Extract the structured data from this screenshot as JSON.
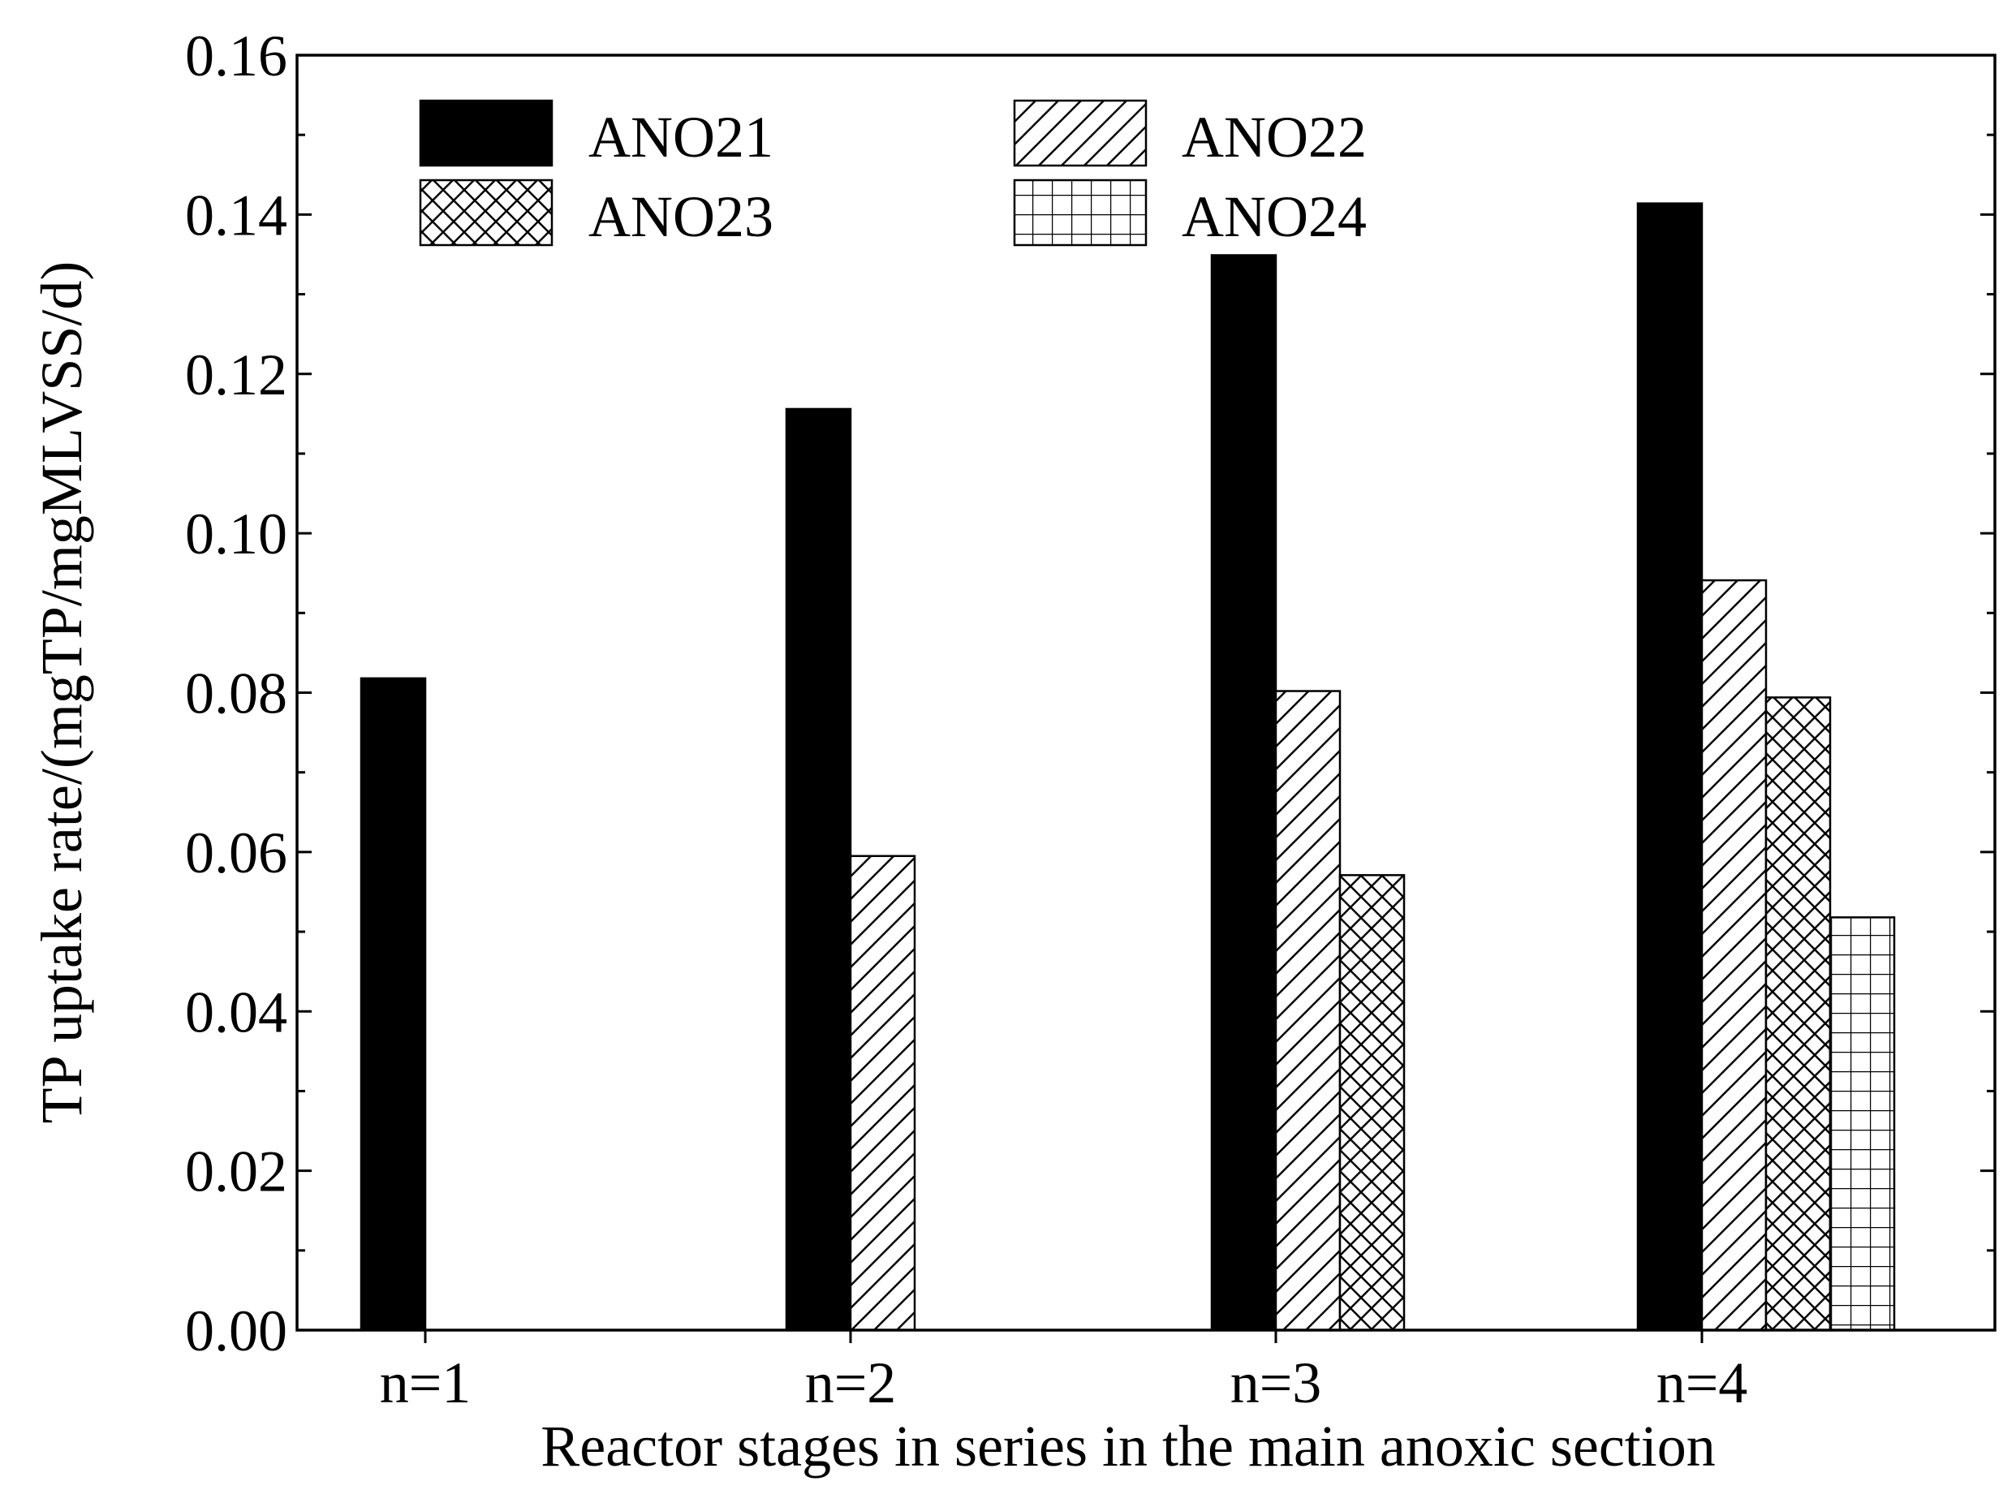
{
  "chart_data": {
    "type": "bar",
    "title": "",
    "xlabel": "Reactor stages in series in the main anoxic section",
    "ylabel": "TP uptake rate/(mgTP/mgMLVSS/d)",
    "ylim": [
      0,
      0.16
    ],
    "yticks": [
      "0.00",
      "0.02",
      "0.04",
      "0.06",
      "0.08",
      "0.10",
      "0.12",
      "0.14",
      "0.16"
    ],
    "categories": [
      "n=1",
      "n=2",
      "n=3",
      "n=4"
    ],
    "legend_position": "top-left",
    "grid": false,
    "series": [
      {
        "name": "ANO21",
        "pattern": "solid",
        "values": [
          0.0818,
          0.1156,
          0.1349,
          0.1414
        ]
      },
      {
        "name": "ANO22",
        "pattern": "diagonal",
        "values": [
          null,
          0.0595,
          0.0802,
          0.0941
        ]
      },
      {
        "name": "ANO23",
        "pattern": "crosshatch",
        "values": [
          null,
          null,
          0.0571,
          0.0794
        ]
      },
      {
        "name": "ANO24",
        "pattern": "grid",
        "values": [
          null,
          null,
          null,
          0.0518
        ]
      }
    ]
  }
}
